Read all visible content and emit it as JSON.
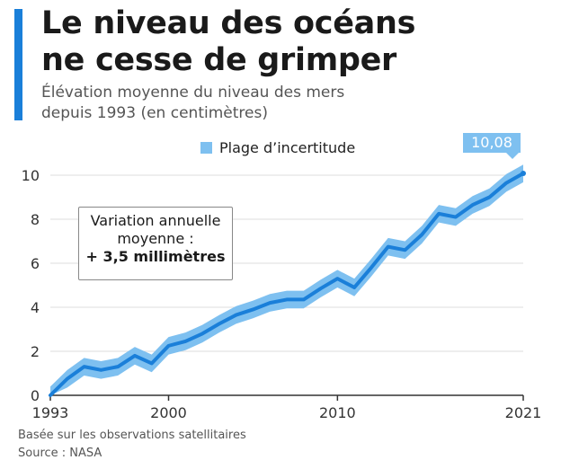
{
  "header": {
    "title_line1": "Le niveau des océans",
    "title_line2": "ne cesse de grimper",
    "subtitle_line1": "Élévation moyenne du niveau des mers",
    "subtitle_line2": "depuis 1993 (en centimètres)"
  },
  "legend": {
    "label": "Plage d’incertitude"
  },
  "callout": {
    "line1": "Variation annuelle",
    "line2": "moyenne :",
    "line3": "+ 3,5 millimètres"
  },
  "end_label": "10,08",
  "footer": {
    "line1": "Basée sur les observations satellitaires",
    "line2": "Source : NASA"
  },
  "colors": {
    "line": "#1a7fd9",
    "band": "#7ec0f0",
    "accent": "#1a7fd9",
    "grid": "#dddddd",
    "axis": "#333333"
  },
  "chart_data": {
    "type": "line",
    "title": "Le niveau des océans ne cesse de grimper",
    "subtitle": "Élévation moyenne du niveau des mers depuis 1993 (en centimètres)",
    "xlabel": "",
    "ylabel": "",
    "xlim": [
      1993,
      2021
    ],
    "ylim": [
      0,
      10
    ],
    "grid": true,
    "legend": "top-center",
    "x_ticks": [
      "1993",
      "2000",
      "2010",
      "2021"
    ],
    "y_ticks": [
      "0",
      "2",
      "4",
      "6",
      "8",
      "10"
    ],
    "series": [
      {
        "name": "",
        "x": [
          1993,
          1994,
          1995,
          1996,
          1997,
          1998,
          1999,
          2000,
          2001,
          2002,
          2003,
          2004,
          2005,
          2006,
          2007,
          2008,
          2009,
          2010,
          2011,
          2012,
          2013,
          2014,
          2015,
          2016,
          2017,
          2018,
          2019,
          2020,
          2021
        ],
        "values": [
          0.0,
          0.75,
          1.3,
          1.15,
          1.3,
          1.8,
          1.45,
          2.25,
          2.45,
          2.8,
          3.25,
          3.65,
          3.9,
          4.2,
          4.35,
          4.35,
          4.85,
          5.3,
          4.9,
          5.8,
          6.75,
          6.6,
          7.3,
          8.25,
          8.1,
          8.65,
          9.0,
          9.65,
          10.08
        ]
      }
    ],
    "uncertainty": 0.4,
    "annotations": [
      {
        "x": 2021,
        "y": 10.08,
        "text": "10,08"
      }
    ]
  }
}
